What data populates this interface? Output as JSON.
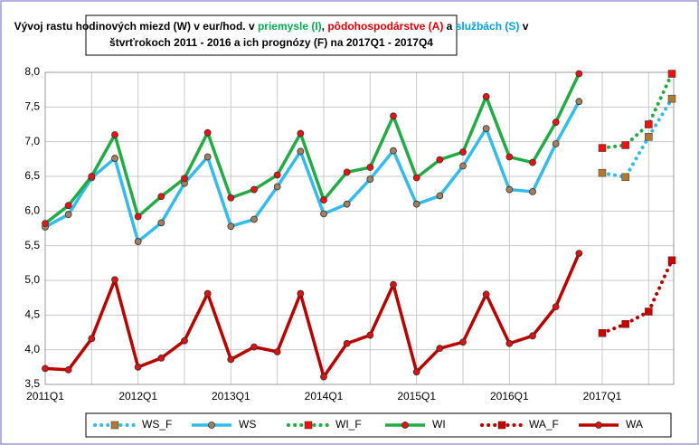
{
  "chart_data": {
    "type": "line",
    "title": [
      [
        {
          "text": "Vývoj rastu hodinových miezd (W) v eur/hod. v ",
          "color": "#000000"
        },
        {
          "text": "priemysle (I)",
          "color": "#00b050"
        },
        {
          "text": ", ",
          "color": "#000000"
        },
        {
          "text": "pôdohospodárstve (A)",
          "color": "#e00000"
        },
        {
          "text": " a ",
          "color": "#000000"
        },
        {
          "text": "službách (S)",
          "color": "#00a0e0"
        },
        {
          "text": " v",
          "color": "#000000"
        }
      ],
      [
        {
          "text": "štvrťrokoch 2011 - 2016 a ich prognózy (F) na 2017Q1 - 2017Q4",
          "color": "#000000"
        }
      ]
    ],
    "categories": [
      "2011Q1",
      null,
      null,
      null,
      "2012Q1",
      null,
      null,
      null,
      "2013Q1",
      null,
      null,
      null,
      "2014Q1",
      null,
      null,
      null,
      "2015Q1",
      null,
      null,
      null,
      "2016Q1",
      null,
      null,
      null,
      "2017Q1",
      null,
      null,
      null
    ],
    "ylim": [
      3.5,
      8.0
    ],
    "yticks": [
      {
        "value": 3.5,
        "label": "3,5"
      },
      {
        "value": 4.0,
        "label": "4,0"
      },
      {
        "value": 4.5,
        "label": "4,5"
      },
      {
        "value": 5.0,
        "label": "5,0"
      },
      {
        "value": 5.5,
        "label": "5,5"
      },
      {
        "value": 6.0,
        "label": "6,0"
      },
      {
        "value": 6.5,
        "label": "6,5"
      },
      {
        "value": 7.0,
        "label": "7,0"
      },
      {
        "value": 7.5,
        "label": "7,5"
      },
      {
        "value": 8.0,
        "label": "8,0"
      }
    ],
    "grid": true,
    "legend": "bottom",
    "series": [
      {
        "name": "WS_F",
        "color": "#33bbee",
        "dashed": true,
        "marker": "square",
        "marker_color": "#b07830",
        "values": [
          null,
          null,
          null,
          null,
          null,
          null,
          null,
          null,
          null,
          null,
          null,
          null,
          null,
          null,
          null,
          null,
          null,
          null,
          null,
          null,
          null,
          null,
          null,
          null,
          6.55,
          6.49,
          7.07,
          7.62
        ]
      },
      {
        "name": "WS",
        "color": "#33bbee",
        "dashed": false,
        "marker": "circle",
        "marker_color": "#a08060",
        "values": [
          5.77,
          5.95,
          6.48,
          6.76,
          5.56,
          5.83,
          6.4,
          6.78,
          5.78,
          5.88,
          6.35,
          6.86,
          5.96,
          6.1,
          6.46,
          6.87,
          6.1,
          6.22,
          6.65,
          7.19,
          6.31,
          6.28,
          6.97,
          7.58,
          null,
          null,
          null,
          null
        ]
      },
      {
        "name": "WI_F",
        "color": "#22aa44",
        "dashed": true,
        "marker": "square",
        "marker_color": "#ee1111",
        "values": [
          null,
          null,
          null,
          null,
          null,
          null,
          null,
          null,
          null,
          null,
          null,
          null,
          null,
          null,
          null,
          null,
          null,
          null,
          null,
          null,
          null,
          null,
          null,
          null,
          6.91,
          6.95,
          7.25,
          7.98
        ]
      },
      {
        "name": "WI",
        "color": "#22aa44",
        "dashed": false,
        "marker": "circle",
        "marker_color": "#ee1111",
        "values": [
          5.82,
          6.08,
          6.5,
          7.1,
          5.92,
          6.21,
          6.47,
          7.13,
          6.19,
          6.31,
          6.52,
          7.12,
          6.16,
          6.56,
          6.63,
          7.37,
          6.48,
          6.74,
          6.85,
          7.65,
          6.78,
          6.7,
          7.28,
          7.98,
          null,
          null,
          null,
          null
        ]
      },
      {
        "name": "WA_F",
        "color": "#bb0000",
        "dashed": true,
        "marker": "square",
        "marker_color": "#cc0000",
        "values": [
          null,
          null,
          null,
          null,
          null,
          null,
          null,
          null,
          null,
          null,
          null,
          null,
          null,
          null,
          null,
          null,
          null,
          null,
          null,
          null,
          null,
          null,
          null,
          null,
          4.24,
          4.37,
          4.55,
          5.29
        ]
      },
      {
        "name": "WA",
        "color": "#bb0000",
        "dashed": false,
        "marker": "circle",
        "marker_color": "#dd1111",
        "values": [
          3.73,
          3.71,
          4.16,
          5.01,
          3.75,
          3.88,
          4.13,
          4.81,
          3.86,
          4.04,
          3.97,
          4.81,
          3.61,
          4.09,
          4.21,
          4.94,
          3.68,
          4.02,
          4.11,
          4.8,
          4.09,
          4.2,
          4.62,
          5.39,
          null,
          null,
          null,
          null
        ]
      }
    ]
  }
}
